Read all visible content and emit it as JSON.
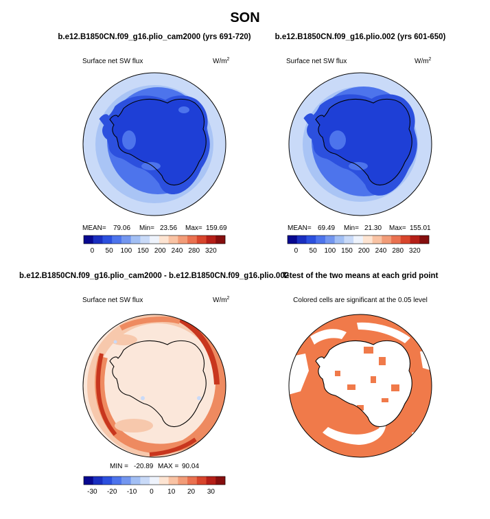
{
  "page_title": "SON",
  "colors": {
    "deep_blue": "#1e3fd6",
    "mid_blue": "#4d74ec",
    "light_blue": "#a9c4f5",
    "pale_blue": "#c9daf8",
    "diff_pale": "#fbe7da",
    "diff_light": "#f7c8ac",
    "diff_mid": "#ee8a60",
    "diff_dark": "#c8361e",
    "significance": "#f07a4a",
    "coast": "#000000"
  },
  "panels": [
    {
      "title": "b.e12.B1850CN.f09_g16.plio_cam2000 (yrs 691-720)",
      "variable": "Surface net SW flux",
      "units_base": "W/m",
      "units_exp": "2",
      "stats": {
        "mean_label": "MEAN=",
        "mean": "79.06",
        "min_label": "Min=",
        "min": "23.56",
        "max_label": "Max=",
        "max": "159.69"
      },
      "colorbar": {
        "colors": [
          "#08088f",
          "#1a2fc0",
          "#2c50de",
          "#4d74ec",
          "#7396ef",
          "#a2bff4",
          "#c9daf8",
          "#eef3fc",
          "#fde4d2",
          "#f9c3a4",
          "#f29c78",
          "#ea7150",
          "#d8452c",
          "#b51f18",
          "#850e0e"
        ],
        "tick_labels": [
          "0",
          "50",
          "100",
          "150",
          "200",
          "240",
          "280",
          "320"
        ]
      }
    },
    {
      "title": "b.e12.B1850CN.f09_g16.plio.002 (yrs 601-650)",
      "variable": "Surface net SW flux",
      "units_base": "W/m",
      "units_exp": "2",
      "stats": {
        "mean_label": "MEAN=",
        "mean": "69.49",
        "min_label": "Min=",
        "min": "21.30",
        "max_label": "Max=",
        "max": "155.01"
      },
      "colorbar": {
        "colors": [
          "#08088f",
          "#1a2fc0",
          "#2c50de",
          "#4d74ec",
          "#7396ef",
          "#a2bff4",
          "#c9daf8",
          "#eef3fc",
          "#fde4d2",
          "#f9c3a4",
          "#f29c78",
          "#ea7150",
          "#d8452c",
          "#b51f18",
          "#850e0e"
        ],
        "tick_labels": [
          "0",
          "50",
          "100",
          "150",
          "200",
          "240",
          "280",
          "320"
        ]
      }
    },
    {
      "title": "b.e12.B1850CN.f09_g16.plio_cam2000 - b.e12.B1850CN.f09_g16.plio.002",
      "variable": "Surface net SW flux",
      "units_base": "W/m",
      "units_exp": "2",
      "stats": {
        "min_label": "MIN =",
        "min": "-20.89",
        "max_label": "MAX =",
        "max": "90.04"
      },
      "colorbar": {
        "colors": [
          "#08088f",
          "#1a2fc0",
          "#2c50de",
          "#4d74ec",
          "#7396ef",
          "#a2bff4",
          "#c9daf8",
          "#eef3fc",
          "#fde4d2",
          "#f9c3a4",
          "#f29c78",
          "#ea7150",
          "#d8452c",
          "#b51f18",
          "#850e0e"
        ],
        "tick_labels": [
          "-30",
          "-20",
          "-10",
          "0",
          "10",
          "20",
          "30"
        ]
      }
    },
    {
      "title": "T-test of the two means at each grid point",
      "subtitle": "Colored cells are significant at the 0.05 level"
    }
  ]
}
